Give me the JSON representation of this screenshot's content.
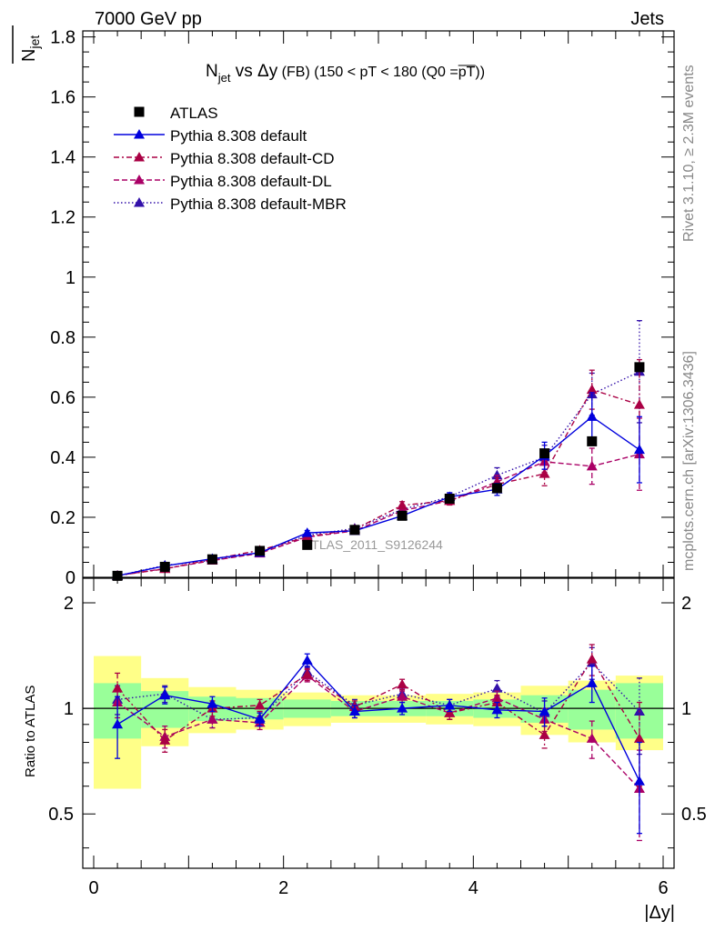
{
  "header": {
    "left": "7000 GeV pp",
    "right": "Jets"
  },
  "side_labels": {
    "rivet": "Rivet 3.1.10, ≥ 2.3M events",
    "mcplots": "mcplots.cern.ch [arXiv:1306.3436]"
  },
  "watermark": "ATLAS_2011_S9126244",
  "colors": {
    "atlas": "#000000",
    "default": "#0000dd",
    "cd": "#aa0044",
    "dl": "#aa0066",
    "mbr": "#3311aa",
    "band_inner": "#99ff99",
    "band_outer": "#ffff88"
  },
  "chart_data": [
    {
      "type": "scatter",
      "title_parts": {
        "n": "N",
        "jet": "jet",
        "vs": " vs ",
        "delta": "Δy",
        "fb": " (FB) ",
        "cut": "(150 < pT < 180 (Q0 =",
        "pt": "pT",
        "close": "))"
      },
      "ylabel_parts": {
        "n": "N",
        "jet": "jet"
      },
      "xlim": [
        0,
        6.15
      ],
      "ylim": [
        0,
        1.82
      ],
      "yticks": [
        0,
        0.2,
        0.4,
        0.6,
        0.8,
        1,
        1.2,
        1.4,
        1.6,
        1.8
      ],
      "ytick_labels": [
        "0",
        "0.2",
        "0.4",
        "0.6",
        "0.8",
        "1",
        "1.2",
        "1.4",
        "1.6",
        "1.8"
      ],
      "x": [
        0.25,
        0.75,
        1.25,
        1.75,
        2.25,
        2.75,
        3.25,
        3.75,
        4.25,
        4.75,
        5.25,
        5.75
      ],
      "legend": {
        "atlas": "ATLAS",
        "default": "Pythia 8.308 default",
        "cd": "Pythia 8.308 default-CD",
        "dl": "Pythia 8.308 default-DL",
        "mbr": "Pythia 8.308 default-MBR"
      },
      "series": [
        {
          "name": "ATLAS",
          "values": [
            0.005,
            0.035,
            0.06,
            0.088,
            0.108,
            0.158,
            0.205,
            0.262,
            0.297,
            0.413,
            0.453,
            0.7
          ]
        },
        {
          "name": "Pythia 8.308 default",
          "values": [
            0.005,
            0.038,
            0.062,
            0.082,
            0.148,
            0.155,
            0.205,
            0.268,
            0.293,
            0.405,
            0.535,
            0.425
          ],
          "errors": [
            0.002,
            0.004,
            0.005,
            0.006,
            0.008,
            0.008,
            0.01,
            0.013,
            0.02,
            0.045,
            0.08,
            0.11
          ]
        },
        {
          "name": "Pythia 8.308 default-CD",
          "values": [
            0.006,
            0.028,
            0.06,
            0.09,
            0.135,
            0.16,
            0.24,
            0.255,
            0.31,
            0.345,
            0.625,
            0.575
          ],
          "errors": [
            0.002,
            0.004,
            0.005,
            0.006,
            0.008,
            0.008,
            0.012,
            0.014,
            0.022,
            0.04,
            0.065,
            0.15
          ]
        },
        {
          "name": "Pythia 8.308 default-DL",
          "values": [
            0.006,
            0.029,
            0.056,
            0.08,
            0.134,
            0.155,
            0.222,
            0.255,
            0.318,
            0.385,
            0.37,
            0.41
          ],
          "errors": [
            0.002,
            0.004,
            0.005,
            0.006,
            0.008,
            0.008,
            0.012,
            0.014,
            0.022,
            0.035,
            0.06,
            0.12
          ]
        },
        {
          "name": "Pythia 8.308 default-MBR",
          "values": [
            0.005,
            0.04,
            0.056,
            0.083,
            0.14,
            0.163,
            0.226,
            0.268,
            0.34,
            0.4,
            0.61,
            0.685
          ],
          "errors": [
            0.002,
            0.004,
            0.005,
            0.006,
            0.008,
            0.008,
            0.012,
            0.014,
            0.025,
            0.04,
            0.07,
            0.17
          ]
        }
      ]
    },
    {
      "type": "scatter",
      "ylabel": "Ratio to ATLAS",
      "xlabel": "|Δy|",
      "xlim": [
        -0.15,
        6.15
      ],
      "ylim": [
        0.35,
        2.35
      ],
      "xticks": [
        0,
        2,
        4,
        6
      ],
      "xtick_labels": [
        "0",
        "2",
        "4",
        "6"
      ],
      "yticks": [
        0.5,
        1,
        2
      ],
      "ytick_labels": [
        "0.5",
        "1",
        "2"
      ],
      "x": [
        0.25,
        0.75,
        1.25,
        1.75,
        2.25,
        2.75,
        3.25,
        3.75,
        4.25,
        4.75,
        5.25,
        5.75
      ],
      "bands": {
        "inner": [
          0.18,
          0.12,
          0.08,
          0.07,
          0.06,
          0.05,
          0.05,
          0.05,
          0.06,
          0.09,
          0.13,
          0.18
        ],
        "outer": [
          0.41,
          0.22,
          0.15,
          0.13,
          0.11,
          0.09,
          0.09,
          0.1,
          0.11,
          0.16,
          0.2,
          0.24
        ]
      },
      "series": [
        {
          "name": "Pythia 8.308 default",
          "values": [
            0.9,
            1.09,
            1.03,
            0.93,
            1.37,
            0.98,
            1.0,
            1.02,
            0.99,
            0.98,
            1.18,
            0.62
          ],
          "errors": [
            0.18,
            0.06,
            0.05,
            0.04,
            0.06,
            0.04,
            0.04,
            0.04,
            0.05,
            0.09,
            0.14,
            0.18
          ]
        },
        {
          "name": "Pythia 8.308 default-CD",
          "values": [
            1.14,
            0.81,
            1.0,
            1.02,
            1.25,
            1.01,
            1.17,
            0.97,
            1.04,
            0.84,
            1.38,
            0.82
          ],
          "errors": [
            0.12,
            0.06,
            0.05,
            0.04,
            0.05,
            0.04,
            0.04,
            0.04,
            0.05,
            0.07,
            0.14,
            0.22
          ]
        },
        {
          "name": "Pythia 8.308 default-DL",
          "values": [
            1.04,
            0.83,
            0.93,
            0.91,
            1.24,
            0.98,
            1.08,
            0.97,
            1.07,
            0.93,
            0.82,
            0.59
          ],
          "errors": [
            0.1,
            0.06,
            0.05,
            0.04,
            0.05,
            0.04,
            0.04,
            0.04,
            0.05,
            0.07,
            0.1,
            0.17
          ]
        },
        {
          "name": "Pythia 8.308 default-MBR",
          "values": [
            1.06,
            1.1,
            0.93,
            0.94,
            1.27,
            1.02,
            1.1,
            1.02,
            1.14,
            0.97,
            1.35,
            0.98
          ],
          "errors": [
            0.1,
            0.06,
            0.05,
            0.04,
            0.05,
            0.04,
            0.04,
            0.04,
            0.06,
            0.08,
            0.14,
            0.24
          ]
        }
      ]
    }
  ]
}
